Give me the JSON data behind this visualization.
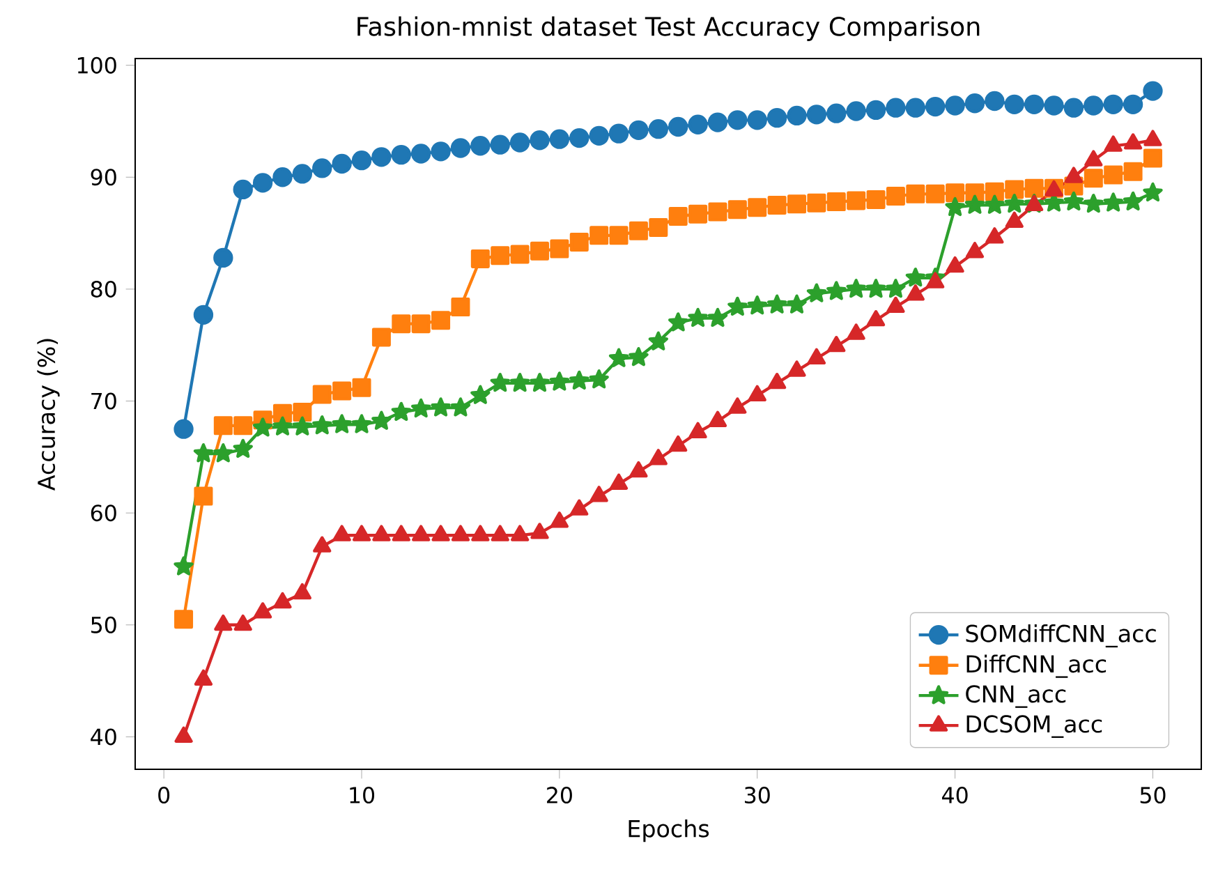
{
  "chart_data": {
    "type": "line",
    "title": "Fashion-mnist dataset  Test Accuracy Comparison",
    "xlabel": "Epochs",
    "ylabel": "Accuracy (%)",
    "x": [
      1,
      2,
      3,
      4,
      5,
      6,
      7,
      8,
      9,
      10,
      11,
      12,
      13,
      14,
      15,
      16,
      17,
      18,
      19,
      20,
      21,
      22,
      23,
      24,
      25,
      26,
      27,
      28,
      29,
      30,
      31,
      32,
      33,
      34,
      35,
      36,
      37,
      38,
      39,
      40,
      41,
      42,
      43,
      44,
      45,
      46,
      47,
      48,
      49,
      50
    ],
    "series": [
      {
        "name": "SOMdiffCNN_acc",
        "color": "#1f77b4",
        "marker": "circle",
        "values": [
          67.5,
          77.7,
          82.8,
          88.9,
          89.5,
          90.0,
          90.3,
          90.8,
          91.2,
          91.5,
          91.8,
          92.0,
          92.1,
          92.3,
          92.6,
          92.8,
          92.9,
          93.1,
          93.3,
          93.4,
          93.5,
          93.7,
          93.9,
          94.2,
          94.3,
          94.5,
          94.7,
          94.9,
          95.1,
          95.1,
          95.3,
          95.5,
          95.6,
          95.7,
          95.9,
          96.0,
          96.2,
          96.2,
          96.3,
          96.4,
          96.6,
          96.8,
          96.5,
          96.5,
          96.4,
          96.2,
          96.4,
          96.5,
          96.5,
          97.7
        ]
      },
      {
        "name": "DiffCNN_acc",
        "color": "#ff7f0e",
        "marker": "square",
        "values": [
          50.5,
          61.5,
          67.8,
          67.8,
          68.3,
          68.9,
          69.0,
          70.6,
          70.9,
          71.2,
          75.7,
          76.9,
          76.9,
          77.2,
          78.4,
          82.7,
          83.0,
          83.1,
          83.4,
          83.6,
          84.2,
          84.8,
          84.8,
          85.2,
          85.5,
          86.5,
          86.7,
          86.9,
          87.1,
          87.3,
          87.5,
          87.6,
          87.7,
          87.8,
          87.9,
          88.0,
          88.3,
          88.5,
          88.5,
          88.6,
          88.6,
          88.7,
          88.9,
          89.0,
          89.0,
          89.2,
          89.9,
          90.2,
          90.5,
          91.7
        ]
      },
      {
        "name": "CNN_acc",
        "color": "#2ca02c",
        "marker": "star",
        "values": [
          55.2,
          65.3,
          65.3,
          65.7,
          67.6,
          67.7,
          67.7,
          67.8,
          67.9,
          67.9,
          68.2,
          69.0,
          69.3,
          69.4,
          69.4,
          70.5,
          71.6,
          71.6,
          71.6,
          71.7,
          71.8,
          71.9,
          73.8,
          73.9,
          75.3,
          77.0,
          77.4,
          77.4,
          78.4,
          78.5,
          78.6,
          78.6,
          79.6,
          79.8,
          80.0,
          80.0,
          80.0,
          81.0,
          81.0,
          87.3,
          87.5,
          87.5,
          87.6,
          87.6,
          87.7,
          87.8,
          87.6,
          87.7,
          87.8,
          88.6
        ]
      },
      {
        "name": "DCSOM_acc",
        "color": "#d62728",
        "marker": "triangle",
        "values": [
          40.0,
          45.1,
          50.0,
          50.0,
          51.1,
          52.0,
          52.8,
          57.0,
          58.0,
          58.0,
          58.0,
          58.0,
          58.0,
          58.0,
          58.0,
          58.0,
          58.0,
          58.0,
          58.2,
          59.2,
          60.3,
          61.5,
          62.6,
          63.7,
          64.8,
          66.0,
          67.2,
          68.2,
          69.4,
          70.5,
          71.6,
          72.7,
          73.8,
          74.9,
          76.0,
          77.2,
          78.4,
          79.5,
          80.6,
          82.0,
          83.3,
          84.6,
          86.0,
          87.5,
          88.8,
          90.0,
          91.5,
          92.8,
          93.0,
          93.3
        ]
      }
    ],
    "xlim": [
      -1.45,
      52.45
    ],
    "ylim": [
      37.1,
      100.6
    ],
    "xticks": [
      0,
      10,
      20,
      30,
      40,
      50
    ],
    "yticks": [
      40,
      50,
      60,
      70,
      80,
      90,
      100
    ],
    "legend": "bottom right"
  }
}
